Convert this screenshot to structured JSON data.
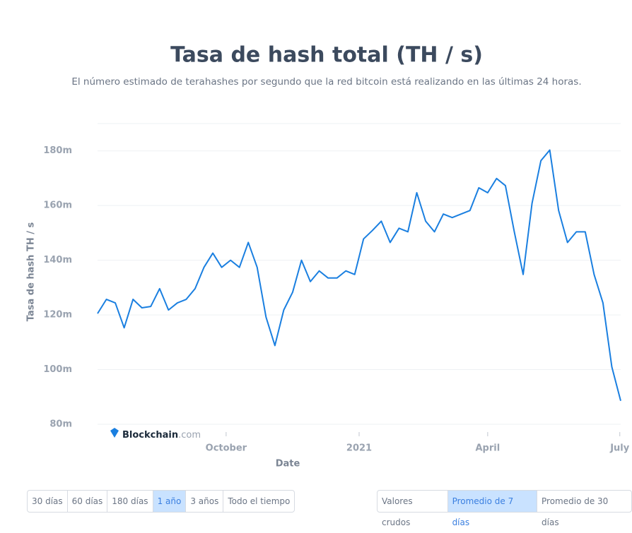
{
  "chart_data": {
    "type": "line",
    "title": "Tasa de hash total (TH / s)",
    "subtitle": "El número estimado de terahashes por segundo que la red bitcoin está realizando en las últimas 24 horas.",
    "x_label": "Date",
    "y_label": "Tasa de hash TH / s",
    "brand": "Blockchain",
    "brand_suffix": ".com",
    "series": [
      {
        "color": "#1a7fe0",
        "values": [
          120.5,
          125.7,
          124.4,
          115.3,
          125.7,
          122.6,
          123.1,
          129.6,
          121.8,
          124.4,
          125.7,
          129.6,
          137.4,
          142.6,
          137.4,
          140,
          137.4,
          146.5,
          137.4,
          119.2,
          108.8,
          121.8,
          128.3,
          140,
          132.2,
          136.1,
          133.5,
          133.5,
          136.1,
          134.8,
          147.8,
          150.9,
          154.3,
          146.5,
          151.7,
          150.4,
          164.7,
          154.3,
          150.4,
          156.9,
          155.6,
          156.9,
          158.2,
          166.5,
          164.7,
          169.9,
          167.3,
          150.4,
          134.8,
          160.8,
          176.4,
          180.3,
          158.2,
          146.5,
          150.4,
          150.4,
          134.8,
          124.4,
          101,
          88.6
        ]
      }
    ],
    "xlim": [
      0,
      59
    ],
    "xticks": [
      {
        "value": 14.5,
        "label": "October"
      },
      {
        "value": 29.5,
        "label": "2021"
      },
      {
        "value": 44,
        "label": "April"
      },
      {
        "value": 58.9,
        "label": "July"
      }
    ],
    "ylim": [
      80,
      190
    ],
    "yticks": [
      {
        "value": 80,
        "label": "80m"
      },
      {
        "value": 100,
        "label": "100m"
      },
      {
        "value": 120,
        "label": "120m"
      },
      {
        "value": 140,
        "label": "140m"
      },
      {
        "value": 160,
        "label": "160m"
      },
      {
        "value": 180,
        "label": "180m"
      }
    ],
    "grid": true
  },
  "controls": {
    "periods": [
      "30 días",
      "60 días",
      "180 días",
      "1 año",
      "3 años",
      "Todo el tiempo"
    ],
    "period_selected": 3,
    "averages": [
      "Valores crudos",
      "Promedio de 7 días",
      "Promedio de 30 días"
    ],
    "average_selected": 1
  }
}
